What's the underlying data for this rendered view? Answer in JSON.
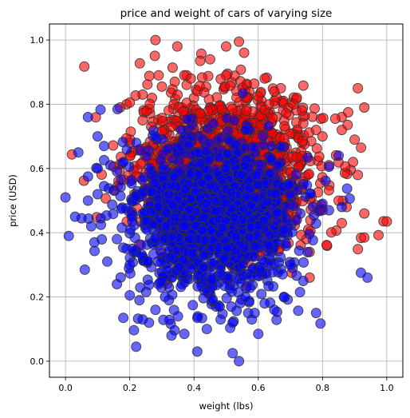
{
  "chart_data": {
    "type": "scatter",
    "title": "price and weight of cars of varying size",
    "xlabel": "weight (lbs)",
    "ylabel": "price (USD)",
    "xlim": [
      -0.05,
      1.05
    ],
    "ylim": [
      -0.05,
      1.05
    ],
    "xticks": [
      "0.0",
      "0.2",
      "0.4",
      "0.6",
      "0.8",
      "1.0"
    ],
    "yticks": [
      "0.0",
      "0.2",
      "0.4",
      "0.6",
      "0.8",
      "1.0"
    ],
    "grid": true,
    "legend": "none",
    "marker": {
      "edge_color": "#333333",
      "alpha": 0.6
    },
    "series": [
      {
        "color": "#ff0000",
        "cluster": {
          "center": [
            0.5,
            0.6
          ],
          "spread": [
            0.14,
            0.12
          ],
          "count": 1500
        },
        "points": [
          [
            0.28,
            1.0
          ],
          [
            0.54,
            0.995
          ],
          [
            0.45,
            0.94
          ],
          [
            0.91,
            0.85
          ],
          [
            0.93,
            0.79
          ],
          [
            0.88,
            0.775
          ],
          [
            0.86,
            0.76
          ],
          [
            0.84,
            0.755
          ],
          [
            0.86,
            0.72
          ],
          [
            0.9,
            0.69
          ],
          [
            0.92,
            0.665
          ],
          [
            0.895,
            0.62
          ],
          [
            0.91,
            0.58
          ],
          [
            0.93,
            0.46
          ],
          [
            0.875,
            0.48
          ],
          [
            1.0,
            0.435
          ],
          [
            0.93,
            0.385
          ],
          [
            0.8,
            0.47
          ],
          [
            0.75,
            0.38
          ],
          [
            0.76,
            0.34
          ],
          [
            0.76,
            0.26
          ],
          [
            0.24,
            0.83
          ],
          [
            0.3,
            0.855
          ],
          [
            0.34,
            0.87
          ],
          [
            0.37,
            0.89
          ],
          [
            0.39,
            0.88
          ],
          [
            0.19,
            0.8
          ],
          [
            0.2,
            0.805
          ],
          [
            0.17,
            0.79
          ],
          [
            0.2,
            0.68
          ],
          [
            0.22,
            0.575
          ],
          [
            0.85,
            0.5
          ],
          [
            0.86,
            0.43
          ],
          [
            0.82,
            0.61
          ],
          [
            0.67,
            0.85
          ],
          [
            0.72,
            0.82
          ],
          [
            0.62,
            0.88
          ],
          [
            0.5,
            0.89
          ],
          [
            0.29,
            0.89
          ],
          [
            0.78,
            0.72
          ],
          [
            0.8,
            0.7
          ],
          [
            0.71,
            0.8
          ],
          [
            0.65,
            0.84
          ],
          [
            0.33,
            0.73
          ],
          [
            0.24,
            0.75
          ]
        ]
      },
      {
        "color": "#0000ff",
        "cluster": {
          "center": [
            0.45,
            0.44
          ],
          "spread": [
            0.13,
            0.12
          ],
          "count": 1500
        },
        "points": [
          [
            0.0,
            0.51
          ],
          [
            0.01,
            0.39
          ],
          [
            0.04,
            0.65
          ],
          [
            0.05,
            0.445
          ],
          [
            0.06,
            0.285
          ],
          [
            0.07,
            0.76
          ],
          [
            0.07,
            0.575
          ],
          [
            0.07,
            0.5
          ],
          [
            0.1,
            0.7
          ],
          [
            0.1,
            0.6
          ],
          [
            0.1,
            0.52
          ],
          [
            0.12,
            0.67
          ],
          [
            0.11,
            0.445
          ],
          [
            0.09,
            0.37
          ],
          [
            0.13,
            0.31
          ],
          [
            0.16,
            0.24
          ],
          [
            0.18,
            0.135
          ],
          [
            0.2,
            0.205
          ],
          [
            0.22,
            0.045
          ],
          [
            0.24,
            0.13
          ],
          [
            0.26,
            0.12
          ],
          [
            0.33,
            0.08
          ],
          [
            0.37,
            0.085
          ],
          [
            0.41,
            0.03
          ],
          [
            0.52,
            0.025
          ],
          [
            0.54,
            0.0
          ],
          [
            0.6,
            0.085
          ],
          [
            0.58,
            0.13
          ],
          [
            0.65,
            0.16
          ],
          [
            0.68,
            0.2
          ],
          [
            0.73,
            0.215
          ],
          [
            0.78,
            0.15
          ],
          [
            0.74,
            0.25
          ],
          [
            0.8,
            0.49
          ],
          [
            0.82,
            0.47
          ],
          [
            0.86,
            0.48
          ],
          [
            0.85,
            0.64
          ],
          [
            0.94,
            0.26
          ],
          [
            0.66,
            0.61
          ],
          [
            0.14,
            0.61
          ],
          [
            0.12,
            0.545
          ],
          [
            0.03,
            0.45
          ],
          [
            0.08,
            0.42
          ],
          [
            0.16,
            0.38
          ],
          [
            0.19,
            0.35
          ],
          [
            0.2,
            0.3
          ],
          [
            0.23,
            0.19
          ],
          [
            0.28,
            0.16
          ],
          [
            0.31,
            0.2
          ],
          [
            0.35,
            0.14
          ],
          [
            0.44,
            0.1
          ],
          [
            0.48,
            0.17
          ],
          [
            0.52,
            0.12
          ],
          [
            0.56,
            0.2
          ],
          [
            0.62,
            0.18
          ],
          [
            0.7,
            0.3
          ],
          [
            0.72,
            0.44
          ],
          [
            0.7,
            0.52
          ],
          [
            0.64,
            0.67
          ],
          [
            0.56,
            0.72
          ],
          [
            0.46,
            0.74
          ],
          [
            0.36,
            0.72
          ],
          [
            0.28,
            0.7
          ],
          [
            0.22,
            0.68
          ],
          [
            0.18,
            0.62
          ]
        ]
      }
    ]
  }
}
